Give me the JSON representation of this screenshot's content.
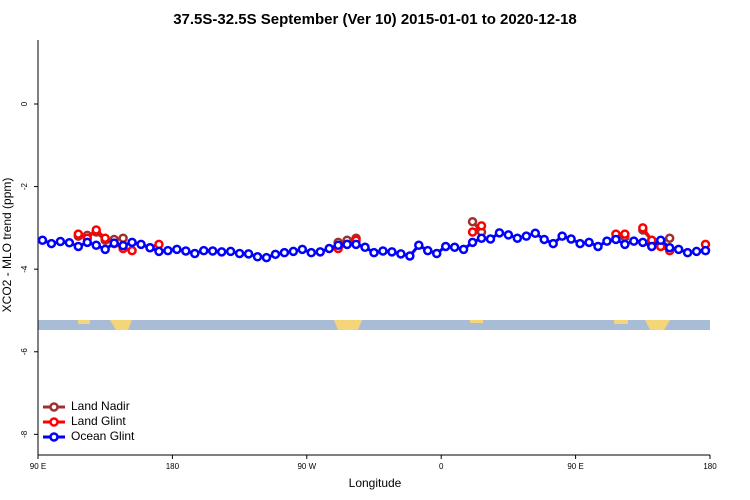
{
  "chart_data": {
    "type": "line",
    "title": "37.5S-32.5S September (Ver 10)   2015-01-01 to 2020-12-18",
    "x_label": "Longitude",
    "y_label": "XCO2 - MLO trend (ppm)",
    "x": [
      93,
      99,
      105,
      111,
      117,
      123,
      129,
      135,
      141,
      147,
      153,
      159,
      165,
      171,
      177,
      183,
      189,
      195,
      201,
      207,
      213,
      219,
      225,
      231,
      237,
      243,
      249,
      255,
      261,
      267,
      273,
      279,
      285,
      291,
      297,
      303,
      309,
      315,
      321,
      327,
      333,
      339,
      345,
      351,
      357,
      363,
      369,
      375,
      381,
      387,
      393,
      399,
      405,
      411,
      417,
      423,
      429,
      435,
      441,
      447,
      453,
      459,
      465,
      471,
      477,
      483,
      489,
      495,
      501,
      507,
      513,
      519,
      525,
      531,
      537
    ],
    "xlim": [
      90,
      540
    ],
    "xticks": [
      {
        "value": 90,
        "label": "90 E"
      },
      180,
      {
        "value": 270,
        "label": "90 W"
      },
      {
        "value": 360,
        "label": "0"
      },
      {
        "value": 450,
        "label": "90 E"
      },
      {
        "value": 540,
        "label": "180"
      }
    ],
    "ylim": [
      -8.5,
      1.55
    ],
    "yticks": [
      0,
      -2,
      -4,
      -6,
      -8
    ],
    "legend": "bottom-left",
    "series": [
      {
        "name": "Land Nadir",
        "color": "#a03030",
        "values": [
          null,
          null,
          null,
          null,
          -3.2,
          -3.18,
          -3.1,
          -3.3,
          -3.28,
          -3.25,
          null,
          null,
          null,
          null,
          null,
          null,
          null,
          null,
          null,
          null,
          null,
          null,
          null,
          null,
          null,
          null,
          null,
          null,
          null,
          null,
          null,
          null,
          null,
          -3.35,
          -3.3,
          -3.25,
          null,
          null,
          null,
          null,
          null,
          null,
          null,
          null,
          null,
          null,
          null,
          null,
          -2.85,
          -3.1,
          null,
          null,
          null,
          null,
          null,
          null,
          null,
          null,
          null,
          null,
          null,
          null,
          null,
          null,
          -3.25,
          -3.22,
          null,
          -3.05,
          -3.3,
          -3.35,
          -3.25,
          null,
          null,
          null,
          null
        ]
      },
      {
        "name": "Land Glint",
        "color": "#ff0000",
        "values": [
          null,
          null,
          null,
          null,
          -3.15,
          -3.25,
          -3.05,
          -3.25,
          -3.38,
          -3.5,
          -3.55,
          null,
          -3.48,
          -3.4,
          null,
          null,
          null,
          null,
          null,
          null,
          null,
          null,
          null,
          null,
          null,
          null,
          null,
          null,
          null,
          null,
          null,
          null,
          null,
          -3.5,
          -3.4,
          -3.3,
          null,
          null,
          null,
          null,
          null,
          null,
          null,
          null,
          null,
          null,
          null,
          null,
          -3.1,
          -2.95,
          null,
          null,
          null,
          null,
          null,
          null,
          null,
          null,
          null,
          null,
          null,
          null,
          null,
          null,
          -3.15,
          -3.15,
          null,
          -3.0,
          -3.3,
          -3.45,
          -3.55,
          null,
          null,
          null,
          -3.4
        ]
      },
      {
        "name": "Ocean Glint",
        "color": "#0000ff",
        "values": [
          -3.3,
          -3.38,
          -3.33,
          -3.36,
          -3.45,
          -3.35,
          -3.42,
          -3.52,
          -3.37,
          -3.43,
          -3.35,
          -3.4,
          -3.48,
          -3.57,
          -3.55,
          -3.52,
          -3.56,
          -3.62,
          -3.55,
          -3.56,
          -3.58,
          -3.57,
          -3.62,
          -3.63,
          -3.7,
          -3.72,
          -3.64,
          -3.6,
          -3.57,
          -3.52,
          -3.6,
          -3.58,
          -3.5,
          -3.42,
          -3.4,
          -3.4,
          -3.47,
          -3.6,
          -3.56,
          -3.58,
          -3.63,
          -3.68,
          -3.42,
          -3.55,
          -3.62,
          -3.45,
          -3.47,
          -3.52,
          -3.35,
          -3.25,
          -3.27,
          -3.12,
          -3.17,
          -3.25,
          -3.2,
          -3.13,
          -3.28,
          -3.38,
          -3.2,
          -3.27,
          -3.38,
          -3.35,
          -3.45,
          -3.32,
          -3.28,
          -3.4,
          -3.32,
          -3.35,
          -3.45,
          -3.3,
          -3.48,
          -3.52,
          -3.6,
          -3.57,
          -3.55
        ]
      }
    ]
  }
}
